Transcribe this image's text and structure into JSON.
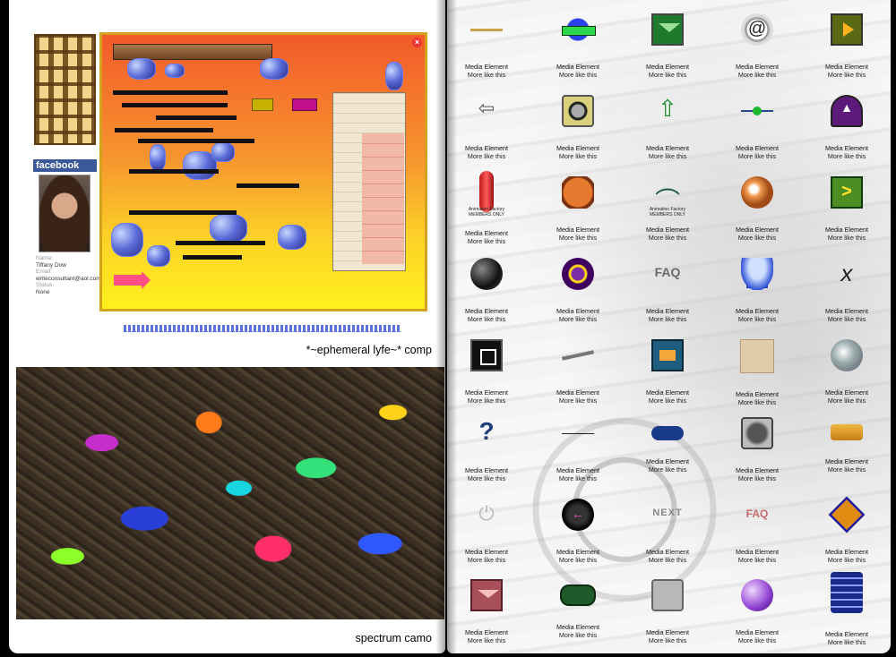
{
  "left_page": {
    "facebook": {
      "badge_label": "facebook",
      "name_label": "Name:",
      "name": "Tiffany Dow",
      "email_label": "Email:",
      "email": "writeconsultant@aol.com",
      "status_label": "Status:",
      "status": "None"
    },
    "comp_caption": "*~ephemeral lyfe~* comp",
    "camo_caption": "spectrum camo"
  },
  "media_cell": {
    "label": "Media Element",
    "more": "More like this"
  },
  "members_tag": {
    "line1": "Animation Factory",
    "line2": "MEMBERS ONLY"
  },
  "icons": [
    [
      "line-icon",
      "badge-icon",
      "envelope-icon",
      "at-sign-icon",
      "play-icon"
    ],
    [
      "left-arrow-icon",
      "metal-square-icon",
      "up-arrow-icon",
      "slider-dot-icon",
      "dome-up-icon"
    ],
    [
      "candy-stick-icon",
      "bar-button-icon",
      "hanger-icon",
      "orange-ball-icon",
      "green-tag-icon"
    ],
    [
      "black-ball-icon",
      "purple-button-icon",
      "faq-icon",
      "lamp-icon",
      "letter-x-icon"
    ],
    [
      "square-icon",
      "pen-icon",
      "mail-icon",
      "paper-icon",
      "globe-icon"
    ],
    [
      "question-icon",
      "thin-line-icon",
      "blue-pill-icon",
      "ghost-button-icon",
      "gold-button-icon"
    ],
    [
      "power-icon",
      "oval-arrow-icon",
      "next-text-icon",
      "faq-red-icon",
      "diamond-icon"
    ],
    [
      "red-mail-icon",
      "camo-pill-icon",
      "case-icon",
      "purple-orb-icon",
      "stack-icon"
    ]
  ]
}
